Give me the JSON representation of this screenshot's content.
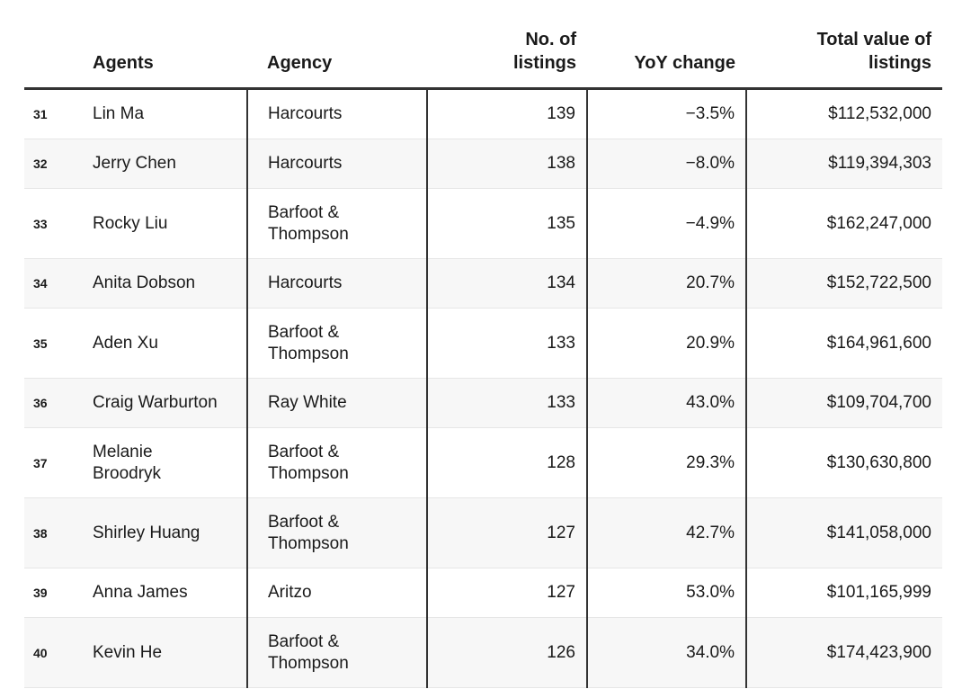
{
  "chart_data": {
    "type": "table",
    "columns": [
      "",
      "Agents",
      "Agency",
      "No. of listings",
      "YoY change",
      "Total value of listings"
    ],
    "rows": [
      {
        "rank": "31",
        "agent": "Lin Ma",
        "agency": "Harcourts",
        "listings": "139",
        "yoy": "−3.5%",
        "value": "$112,532,000"
      },
      {
        "rank": "32",
        "agent": "Jerry Chen",
        "agency": "Harcourts",
        "listings": "138",
        "yoy": "−8.0%",
        "value": "$119,394,303"
      },
      {
        "rank": "33",
        "agent": "Rocky Liu",
        "agency": "Barfoot & Thompson",
        "listings": "135",
        "yoy": "−4.9%",
        "value": "$162,247,000"
      },
      {
        "rank": "34",
        "agent": "Anita Dobson",
        "agency": "Harcourts",
        "listings": "134",
        "yoy": "20.7%",
        "value": "$152,722,500"
      },
      {
        "rank": "35",
        "agent": "Aden Xu",
        "agency": "Barfoot & Thompson",
        "listings": "133",
        "yoy": "20.9%",
        "value": "$164,961,600"
      },
      {
        "rank": "36",
        "agent": "Craig Warburton",
        "agency": "Ray White",
        "listings": "133",
        "yoy": "43.0%",
        "value": "$109,704,700"
      },
      {
        "rank": "37",
        "agent": "Melanie Broodryk",
        "agency": "Barfoot & Thompson",
        "listings": "128",
        "yoy": "29.3%",
        "value": "$130,630,800"
      },
      {
        "rank": "38",
        "agent": "Shirley Huang",
        "agency": "Barfoot & Thompson",
        "listings": "127",
        "yoy": "42.7%",
        "value": "$141,058,000"
      },
      {
        "rank": "39",
        "agent": "Anna James",
        "agency": "Aritzo",
        "listings": "127",
        "yoy": "53.0%",
        "value": "$101,165,999"
      },
      {
        "rank": "40",
        "agent": "Kevin He",
        "agency": "Barfoot & Thompson",
        "listings": "126",
        "yoy": "34.0%",
        "value": "$174,423,900"
      }
    ]
  }
}
